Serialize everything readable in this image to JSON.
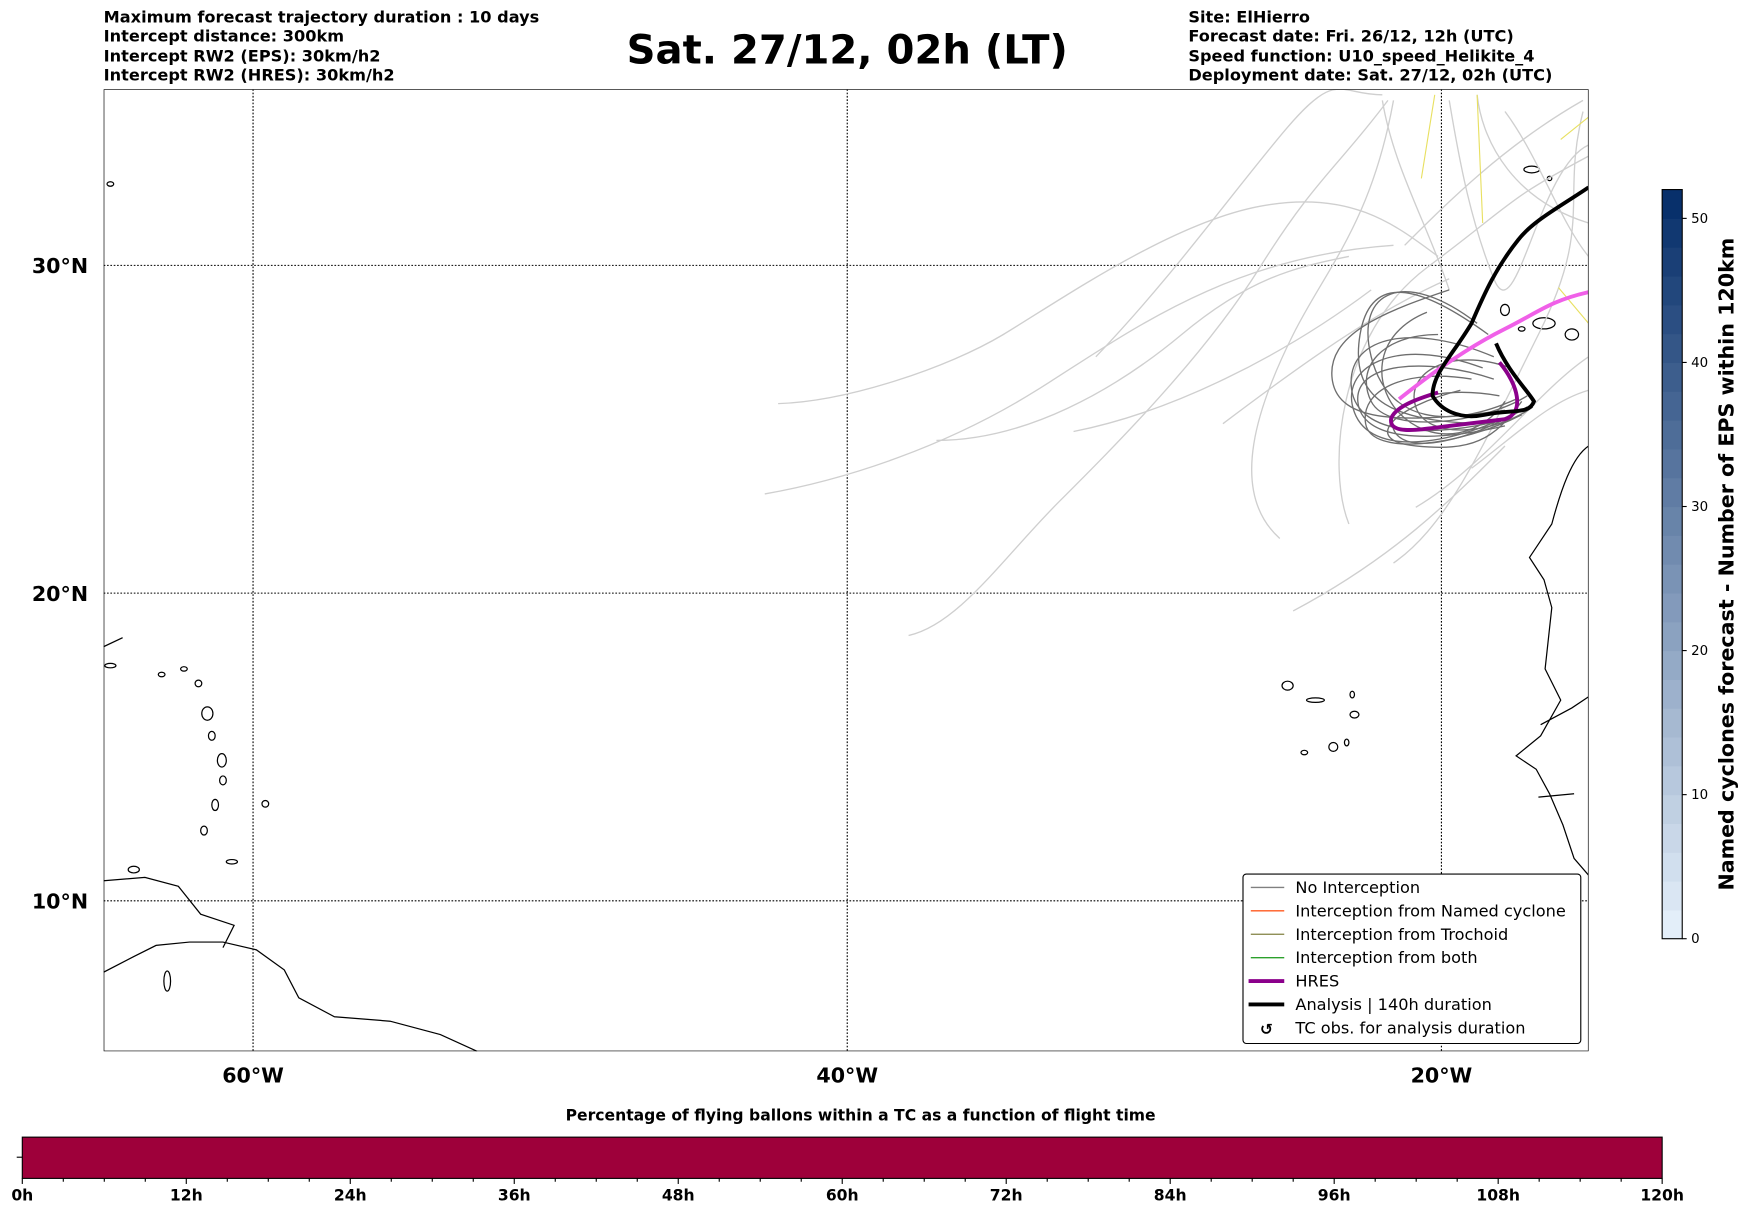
{
  "header": {
    "left": [
      "Maximum forecast trajectory duration : 10 days",
      "Intercept distance: 300km",
      "Intercept RW2 (EPS):  30km/h2",
      "Intercept RW2 (HRES): 30km/h2"
    ],
    "title": "Sat. 27/12, 02h (LT)",
    "right": [
      "Site: ElHierro",
      "Forecast date: Fri. 26/12, 12h (UTC)",
      "Speed function: U10_speed_Helikite_4",
      "Deployment date: Sat. 27/12, 02h (UTC)"
    ]
  },
  "map": {
    "lat_labels": [
      "30°N",
      "20°N",
      "10°N"
    ],
    "lon_labels": [
      "60°W",
      "40°W",
      "20°W"
    ]
  },
  "legend": {
    "items": [
      {
        "label": "No Interception",
        "color": "#808080"
      },
      {
        "label": "Interception from Named cyclone",
        "color": "#ff5a1f"
      },
      {
        "label": "Interception from Trochoid",
        "color": "#808040"
      },
      {
        "label": "Interception from both",
        "color": "#2ca02c"
      },
      {
        "label": "HRES",
        "color": "#8b008b"
      },
      {
        "label": "Analysis | 140h duration",
        "color": "#000000"
      },
      {
        "label": "TC obs. for analysis duration",
        "icon": "cyclone-icon"
      }
    ]
  },
  "colorbar": {
    "label": "Named cyclones forecast - Number of EPS within 120km",
    "ticks": [
      "0",
      "10",
      "20",
      "30",
      "40",
      "50"
    ],
    "range": [
      0,
      52
    ],
    "colors": [
      "#e3eef9",
      "#08306b"
    ]
  },
  "flight_bar": {
    "title": "Percentage of flying ballons within a TC as a function of flight time",
    "ticks": [
      "0h",
      "12h",
      "24h",
      "36h",
      "48h",
      "60h",
      "72h",
      "84h",
      "96h",
      "108h",
      "120h"
    ],
    "fill_color": "#9e003a",
    "percentage": 0
  }
}
